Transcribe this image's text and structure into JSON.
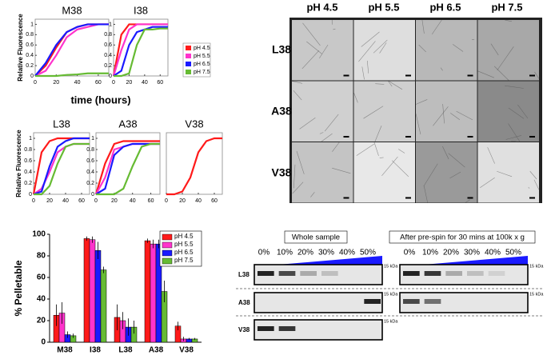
{
  "chart_data": [
    {
      "type": "line",
      "title": "M38",
      "y_label": "Relative Fluorescence",
      "x_label": "time (hours)",
      "x": [
        0,
        10,
        20,
        30,
        40,
        50,
        60,
        70
      ],
      "xlim": [
        0,
        70
      ],
      "xticks": [
        0,
        20,
        40,
        60
      ],
      "ylim": [
        0,
        1.1
      ],
      "yticks": [
        0,
        0.2,
        0.4,
        0.6,
        0.8,
        1
      ],
      "series": [
        {
          "color": "#ff1a1a",
          "values": [
            0,
            0.2,
            0.55,
            0.85,
            0.95,
            1,
            1,
            1
          ]
        },
        {
          "color": "#ff33cc",
          "values": [
            0,
            0.1,
            0.4,
            0.75,
            0.9,
            0.95,
            1,
            1
          ]
        },
        {
          "color": "#1a1aff",
          "values": [
            0,
            0.25,
            0.6,
            0.85,
            0.95,
            1,
            1,
            1
          ]
        },
        {
          "color": "#66bb33",
          "values": [
            0,
            0,
            0,
            0.02,
            0.03,
            0.05,
            0.05,
            0.05
          ]
        }
      ]
    },
    {
      "type": "line",
      "title": "I38",
      "legend": "right",
      "x": [
        0,
        10,
        20,
        30,
        40,
        50,
        60,
        70
      ],
      "xlim": [
        0,
        70
      ],
      "xticks": [
        0,
        20,
        40,
        60
      ],
      "ylim": [
        0,
        1.1
      ],
      "yticks": [
        0,
        0.2,
        0.4,
        0.6,
        0.8,
        1
      ],
      "series": [
        {
          "name": "pH 4.5",
          "color": "#ff1a1a",
          "values": [
            0,
            0.8,
            1,
            1,
            1,
            1,
            1,
            1
          ]
        },
        {
          "name": "pH 5.5",
          "color": "#ff33cc",
          "values": [
            0,
            0.5,
            0.9,
            1,
            1,
            1,
            1,
            1
          ]
        },
        {
          "name": "pH 6.5",
          "color": "#1a1aff",
          "values": [
            0,
            0.1,
            0.6,
            0.85,
            0.9,
            0.95,
            0.95,
            0.95
          ]
        },
        {
          "name": "pH 7.5",
          "color": "#66bb33",
          "values": [
            0,
            0,
            0.05,
            0.6,
            0.9,
            0.9,
            0.92,
            0.92
          ]
        }
      ]
    },
    {
      "type": "line",
      "title": "L38",
      "y_label": "Relative Fluorescence",
      "x": [
        0,
        10,
        20,
        30,
        40,
        50,
        60,
        70
      ],
      "xlim": [
        0,
        70
      ],
      "xticks": [
        0,
        20,
        40,
        60
      ],
      "ylim": [
        0,
        1.1
      ],
      "yticks": [
        0,
        0.2,
        0.4,
        0.6,
        0.8,
        1
      ],
      "series": [
        {
          "color": "#ff1a1a",
          "values": [
            0,
            0.75,
            0.95,
            1,
            1,
            1,
            1,
            1
          ]
        },
        {
          "color": "#ff33cc",
          "values": [
            0,
            0.1,
            0.4,
            0.75,
            0.85,
            0.9,
            0.9,
            0.9
          ]
        },
        {
          "color": "#1a1aff",
          "values": [
            0,
            0.05,
            0.5,
            0.85,
            0.95,
            1,
            1,
            1
          ]
        },
        {
          "color": "#66bb33",
          "values": [
            0,
            0,
            0.15,
            0.55,
            0.85,
            0.9,
            0.9,
            0.9
          ]
        }
      ]
    },
    {
      "type": "line",
      "title": "A38",
      "x": [
        0,
        10,
        20,
        30,
        40,
        50,
        60,
        70
      ],
      "xlim": [
        0,
        70
      ],
      "xticks": [
        0,
        20,
        40,
        60
      ],
      "ylim": [
        0,
        1.1
      ],
      "yticks": [
        0,
        0.2,
        0.4,
        0.6,
        0.8,
        1
      ],
      "series": [
        {
          "color": "#ff1a1a",
          "values": [
            0,
            0.55,
            0.9,
            0.95,
            0.95,
            0.95,
            0.95,
            0.95
          ]
        },
        {
          "color": "#ff33cc",
          "values": [
            0,
            0.3,
            0.8,
            0.85,
            0.9,
            0.9,
            0.9,
            0.9
          ]
        },
        {
          "color": "#1a1aff",
          "values": [
            0,
            0.1,
            0.7,
            0.85,
            0.9,
            0.9,
            0.9,
            0.9
          ]
        },
        {
          "color": "#66bb33",
          "values": [
            0,
            0,
            0,
            0.1,
            0.5,
            0.85,
            0.9,
            0.9
          ]
        }
      ]
    },
    {
      "type": "line",
      "title": "V38",
      "x": [
        0,
        10,
        20,
        30,
        40,
        50,
        60,
        70
      ],
      "xlim": [
        0,
        70
      ],
      "xticks": [
        0,
        20,
        40,
        60
      ],
      "ylim": [
        0,
        1.1
      ],
      "series": [
        {
          "color": "#ff1a1a",
          "values": [
            0,
            0,
            0.05,
            0.3,
            0.75,
            0.95,
            1,
            1
          ]
        }
      ]
    },
    {
      "type": "bar",
      "y_label": "% Pelletable",
      "legend": "upper right",
      "categories": [
        "M38",
        "I38",
        "L38",
        "A38",
        "V38"
      ],
      "ylim": [
        0,
        100
      ],
      "yticks": [
        0,
        20,
        40,
        60,
        80,
        100
      ],
      "series": [
        {
          "name": "pH 4.5",
          "color": "#ff1a1a",
          "values": [
            25,
            96,
            23,
            94,
            15
          ],
          "errors": [
            10,
            2,
            12,
            2,
            4
          ]
        },
        {
          "name": "pH 5.5",
          "color": "#ff33cc",
          "values": [
            27,
            95,
            20,
            91,
            3
          ],
          "errors": [
            10,
            3,
            8,
            4,
            2
          ]
        },
        {
          "name": "pH 6.5",
          "color": "#1a1aff",
          "values": [
            7,
            85,
            14,
            91,
            3
          ],
          "errors": [
            3,
            8,
            8,
            4,
            1
          ]
        },
        {
          "name": "pH 7.5",
          "color": "#66bb33",
          "values": [
            6,
            67,
            14,
            47,
            3
          ],
          "errors": [
            2,
            3,
            6,
            10,
            1
          ]
        }
      ]
    }
  ],
  "micrographs": {
    "columns": [
      "pH 4.5",
      "pH 5.5",
      "pH 6.5",
      "pH 7.5"
    ],
    "rows": [
      "L38",
      "A38",
      "V38"
    ]
  },
  "gel": {
    "rows": [
      "L38",
      "A38",
      "V38"
    ],
    "panels": [
      {
        "title": "Whole sample",
        "lanes": [
          "0%",
          "10%",
          "20%",
          "30%",
          "40%",
          "50%"
        ],
        "markers": [
          "15 kDa",
          "15 kDa",
          "15 kDa"
        ]
      },
      {
        "title": "After pre-spin for 30 mins at 100k x g",
        "lanes": [
          "0%",
          "10%",
          "20%",
          "30%",
          "40%",
          "50%"
        ],
        "markers": [
          "15 kDa",
          "15 kDa"
        ]
      }
    ]
  }
}
